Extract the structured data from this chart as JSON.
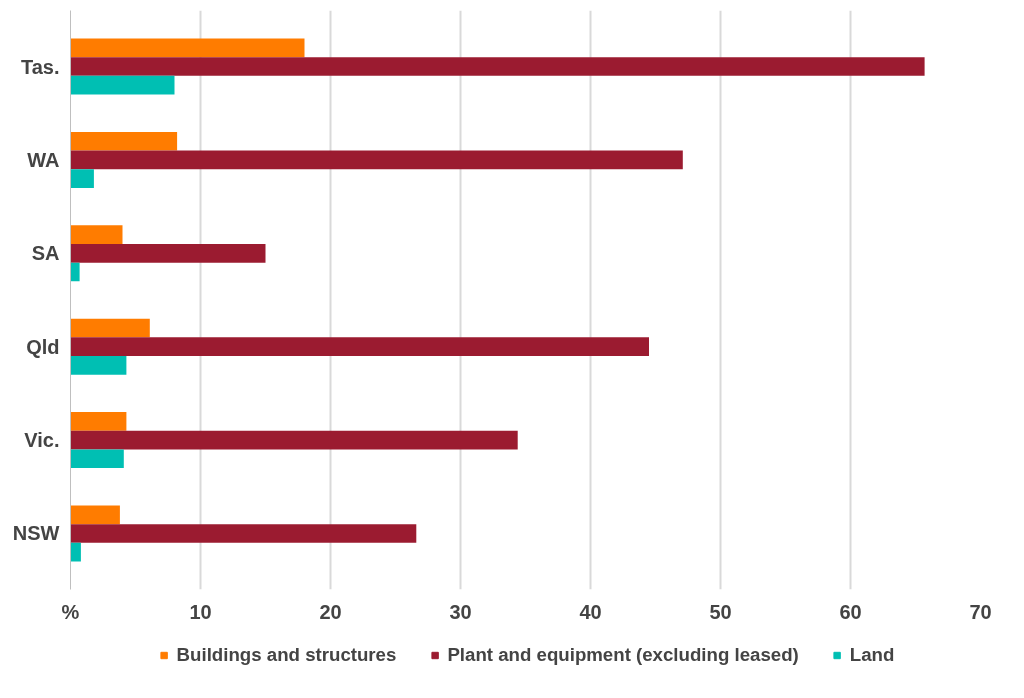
{
  "chart_data": {
    "type": "bar",
    "orientation": "horizontal",
    "categories": [
      "Tas.",
      "WA",
      "SA",
      "Qld",
      "Vic.",
      "NSW"
    ],
    "series": [
      {
        "name": "Buildings and structures",
        "color": "#ff7c00",
        "values": [
          18.0,
          8.2,
          4.0,
          6.1,
          4.3,
          3.8
        ]
      },
      {
        "name": "Plant and equipment (excluding leased)",
        "color": "#9b1b30",
        "values": [
          65.7,
          47.1,
          15.0,
          44.5,
          34.4,
          26.6
        ]
      },
      {
        "name": "Land",
        "color": "#00bfb3",
        "values": [
          8.0,
          1.8,
          0.7,
          4.3,
          4.1,
          0.8
        ]
      }
    ],
    "xlim": [
      0,
      70
    ],
    "xticks": [
      {
        "value": 0,
        "label": "%"
      },
      10,
      20,
      30,
      40,
      50,
      60,
      70
    ],
    "grid": "x",
    "legend": "bottom"
  }
}
